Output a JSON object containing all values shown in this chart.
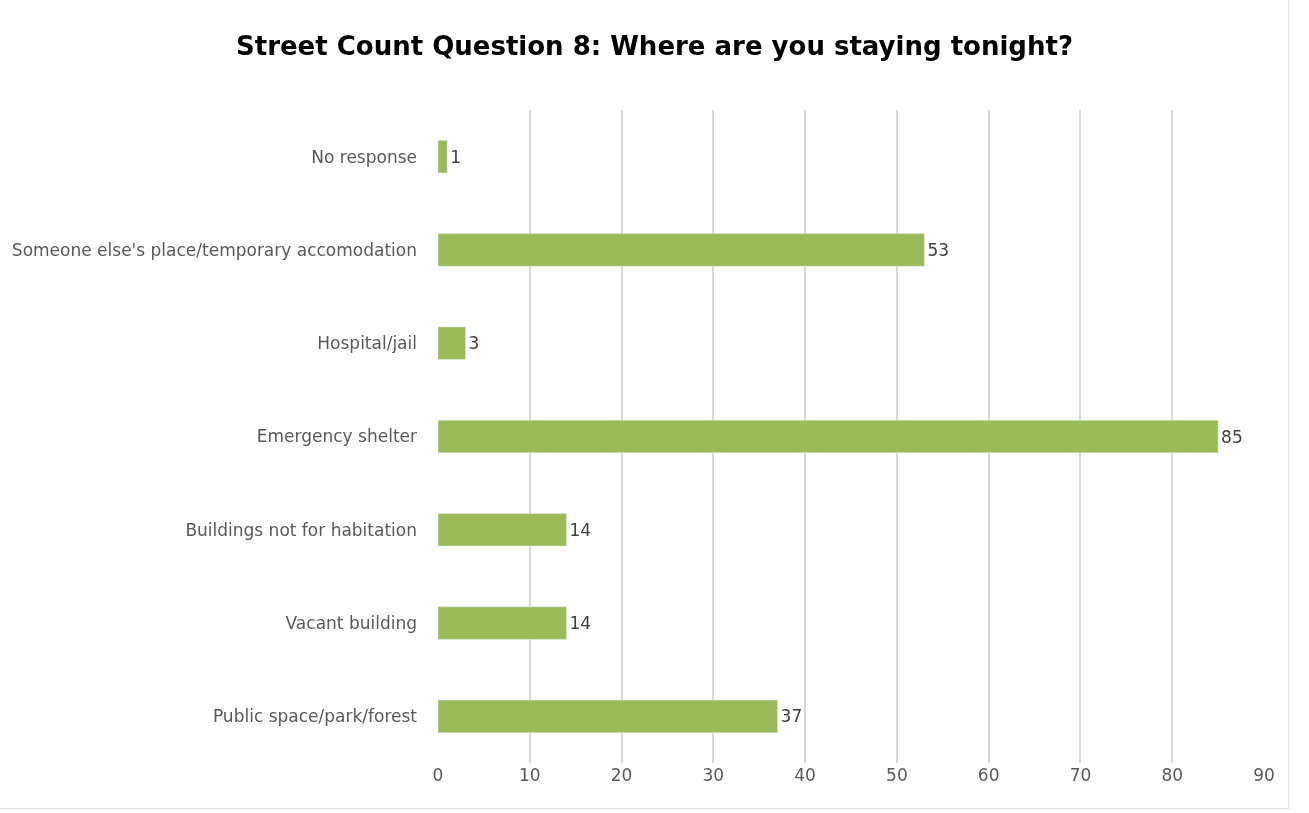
{
  "chart_data": {
    "type": "bar",
    "orientation": "horizontal",
    "title": "Street Count Question 8: Where are you staying tonight?",
    "categories": [
      "No response",
      "Someone else's place/temporary accomodation",
      "Hospital/jail",
      "Emergency shelter",
      "Buildings not for habitation",
      "Vacant building",
      "Public space/park/forest"
    ],
    "values": [
      1,
      53,
      3,
      85,
      14,
      14,
      37
    ],
    "color": "#9bbb59",
    "xlim": [
      0,
      90
    ],
    "xticks": [
      0,
      10,
      20,
      30,
      40,
      50,
      60,
      70,
      80,
      90
    ],
    "grid": "x",
    "data_labels": true
  }
}
